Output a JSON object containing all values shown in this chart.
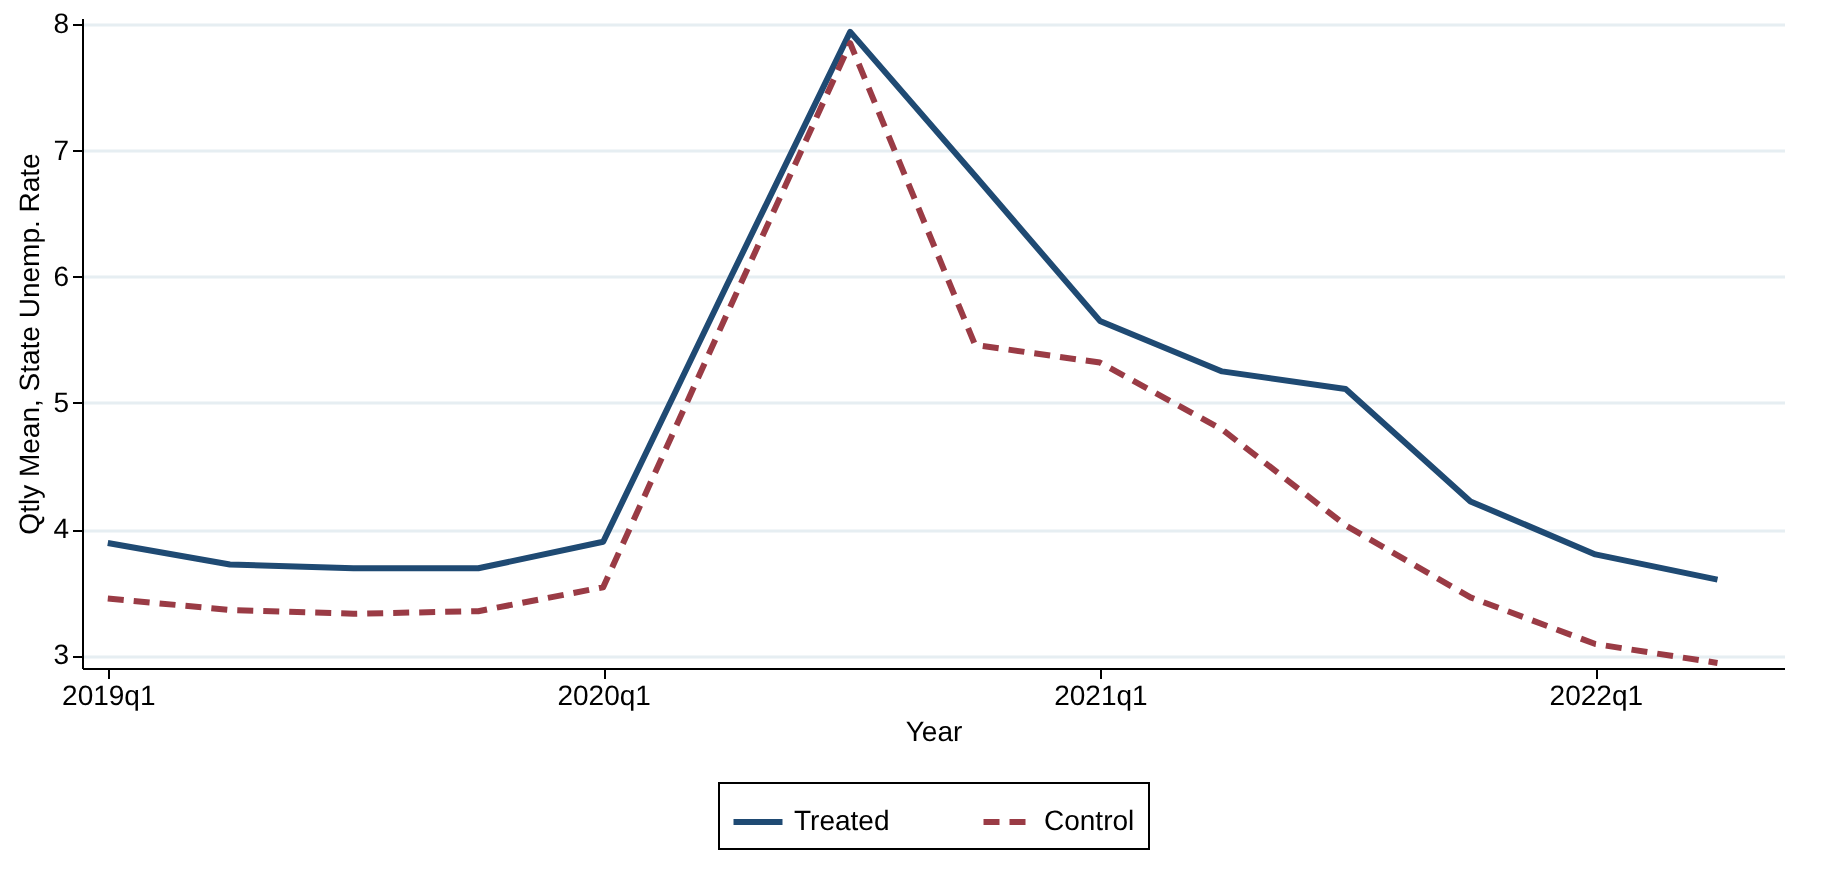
{
  "chart_data": {
    "type": "line",
    "xlabel": "Year",
    "ylabel": "Qtly Mean, State Unemp. Rate",
    "x": [
      "2019-01",
      "2019-04",
      "2019-07",
      "2019-10",
      "2020-01",
      "2020-04",
      "2020-07",
      "2020-10",
      "2021-01",
      "2021-04",
      "2021-07",
      "2021-10",
      "2022-01",
      "2022-04"
    ],
    "series": [
      {
        "name": "Treated",
        "color": "#1f4a73",
        "line_style": "solid",
        "values": [
          3.89,
          3.72,
          3.69,
          3.69,
          3.9,
          5.93,
          7.94,
          6.8,
          5.65,
          5.25,
          5.11,
          4.22,
          3.8,
          3.6
        ]
      },
      {
        "name": "Control",
        "color": "#9a3b45",
        "line_style": "dashed",
        "values": [
          3.45,
          3.36,
          3.33,
          3.35,
          3.54,
          5.7,
          7.85,
          5.46,
          5.32,
          4.79,
          4.03,
          3.46,
          3.09,
          2.94
        ]
      }
    ],
    "xlim": [
      "2018-12-13",
      "2022-05-20"
    ],
    "xticks": [
      {
        "value": "2019-01",
        "label": "2019q1"
      },
      {
        "value": "2020-01",
        "label": "2020q1"
      },
      {
        "value": "2021-01",
        "label": "2021q1"
      },
      {
        "value": "2022-01",
        "label": "2022q1"
      }
    ],
    "ylim": [
      2.9,
      8.05
    ],
    "yticks": [
      3,
      4,
      5,
      6,
      7,
      8
    ],
    "grid": "y",
    "legend": "bottom"
  }
}
